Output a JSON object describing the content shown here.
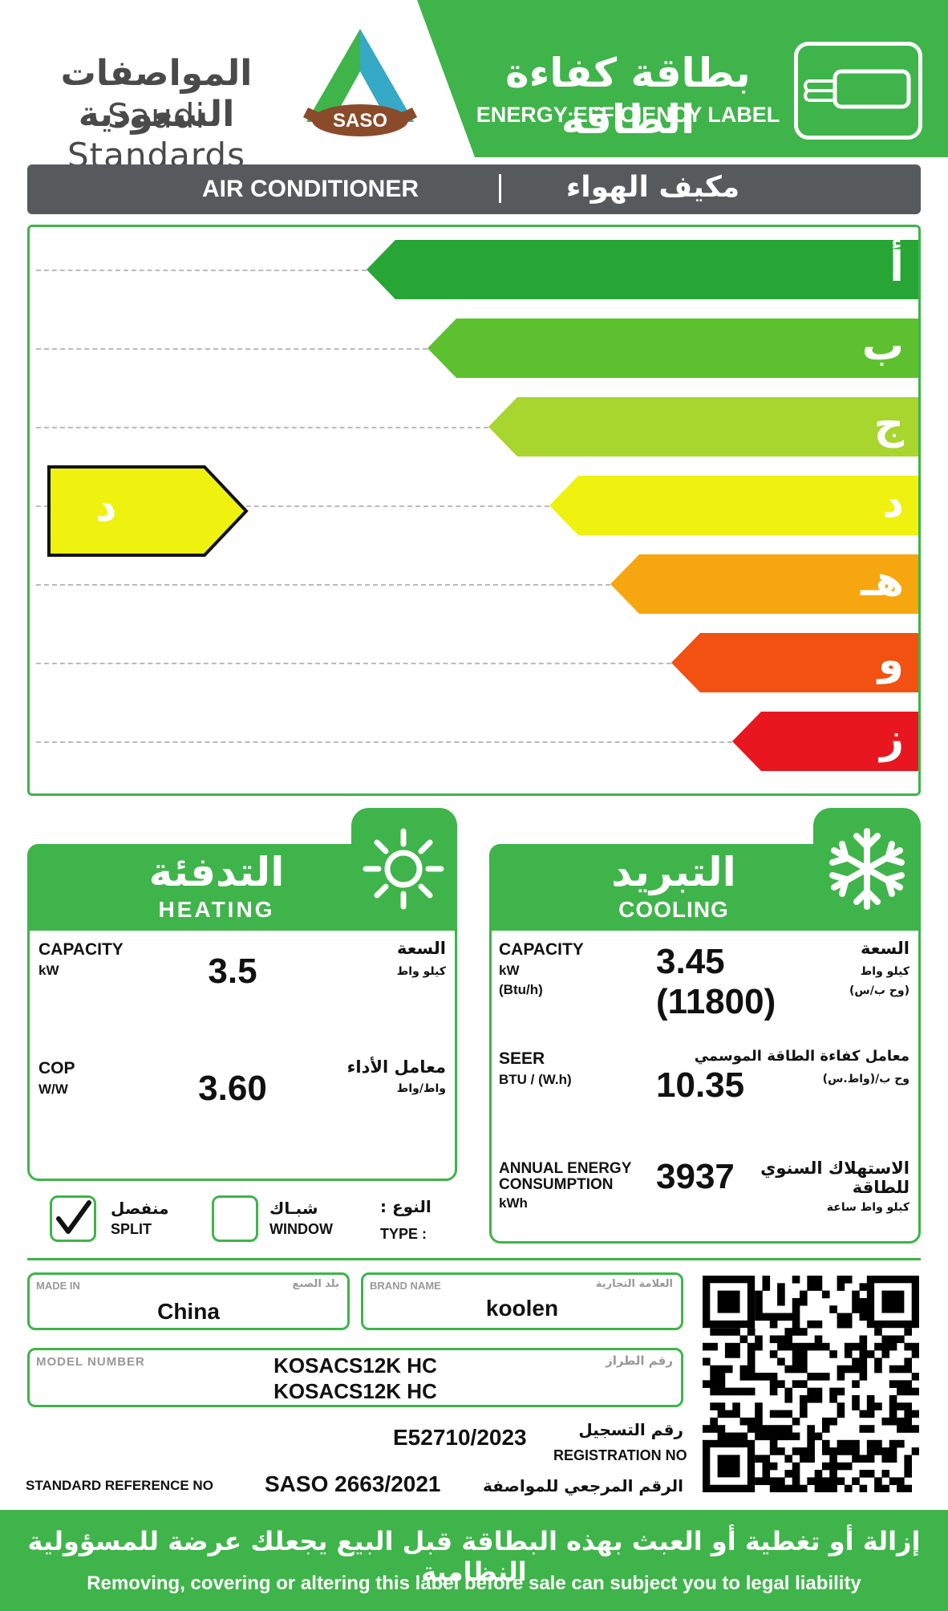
{
  "header": {
    "org_ar": "المواصفات السعودية",
    "org_en": "Saudi Standards",
    "logo_text": "SASO",
    "label_ar": "بطاقة كفاءة الطاقة",
    "label_en": "ENERGY EFFICIENCY LABEL",
    "icon": "air-conditioner-icon"
  },
  "title": {
    "en": "AIR CONDITIONER",
    "ar": "مكيف الهواء"
  },
  "scale": {
    "bands": [
      {
        "label": "أ",
        "color": "#27a635"
      },
      {
        "label": "ب",
        "color": "#5dc12f"
      },
      {
        "label": "ج",
        "color": "#a8d52e"
      },
      {
        "label": "د",
        "color": "#eef20e"
      },
      {
        "label": "هـ",
        "color": "#f6a70f"
      },
      {
        "label": "و",
        "color": "#f25111"
      },
      {
        "label": "ز",
        "color": "#e8171f"
      }
    ],
    "rating": "د",
    "rating_color": "#eef20e"
  },
  "heating": {
    "title_ar": "التدفئة",
    "title_en": "HEATING",
    "icon": "sun-icon",
    "capacity_label_en": "CAPACITY",
    "capacity_unit_en": "kW",
    "capacity_label_ar": "السعة",
    "capacity_unit_ar": "كيلو واط",
    "capacity_value": "3.5",
    "cop_label_en": "COP",
    "cop_unit_en": "W/W",
    "cop_label_ar": "معامل الأداء",
    "cop_unit_ar": "واط/واط",
    "cop_value": "3.60"
  },
  "cooling": {
    "title_ar": "التبريد",
    "title_en": "COOLING",
    "icon": "snowflake-icon",
    "capacity_label_en": "CAPACITY",
    "capacity_unit_en": "kW",
    "capacity_unit2_en": "(Btu/h)",
    "capacity_label_ar": "السعة",
    "capacity_unit_ar": "كيلو واط",
    "capacity_unit2_ar": "(وح ب/س)",
    "capacity_value": "3.45",
    "capacity_value_btu": "(11800)",
    "seer_label_en": "SEER",
    "seer_unit_en": "BTU / (W.h)",
    "seer_label_ar": "معامل كفاءة الطاقة الموسمي",
    "seer_unit_ar": "وح ب/(واط.س)",
    "seer_value": "10.35",
    "annual_label_en_1": "ANNUAL ENERGY",
    "annual_label_en_2": "CONSUMPTION",
    "annual_unit_en": "kWh",
    "annual_label_ar_1": "الاستهلاك السنوي",
    "annual_label_ar_2": "للطاقة",
    "annual_unit_ar": "كيلو واط ساعة",
    "annual_value": "3937"
  },
  "type": {
    "label_ar": "النوع :",
    "label_en": "TYPE :",
    "options": [
      {
        "ar": "منفصل",
        "en": "SPLIT",
        "checked": true
      },
      {
        "ar": "شبـاك",
        "en": "WINDOW",
        "checked": false
      }
    ]
  },
  "info": {
    "made_in_label_en": "MADE IN",
    "made_in_label_ar": "بلد الصنع",
    "made_in_value": "China",
    "brand_label_en": "BRAND  NAME",
    "brand_label_ar": "العلامة التجارية",
    "brand_value": "koolen",
    "model_label_en": "MODEL NUMBER",
    "model_label_ar": "رقم الطراز",
    "model_value_1": "KOSACS12K HC",
    "model_value_2": "KOSACS12K HC",
    "registration_value": "E52710/2023",
    "registration_label_ar": "رقم التسجيل",
    "registration_label_en": "REGISTRATION NO",
    "standard_label_en": "STANDARD REFERENCE NO",
    "standard_value": "SASO 2663/2021",
    "standard_label_ar": "الرقم المرجعي للمواصفة"
  },
  "footer": {
    "ar": "إزالة أو تغطية أو العبث بهذه البطاقة قبل البيع يجعلك عرضة للمسؤولية النظامية",
    "en": "Removing, covering or altering this label before sale can subject you to legal liability"
  },
  "colors": {
    "brand_green": "#3fb44a",
    "title_bar": "#565a5c"
  }
}
